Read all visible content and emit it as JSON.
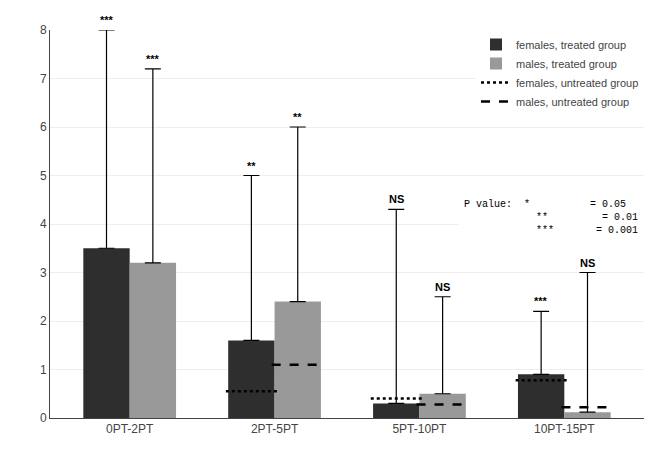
{
  "chart_data": {
    "type": "bar",
    "categories": [
      "0PT-2PT",
      "2PT-5PT",
      "5PT-10PT",
      "10PT-15PT"
    ],
    "series": [
      {
        "name": "females, treated group",
        "type": "bar",
        "color": "#2e2e2e",
        "values": [
          3.5,
          1.6,
          0.3,
          0.9
        ],
        "error_top": [
          8.0,
          5.0,
          4.3,
          2.2
        ],
        "significance": [
          "***",
          "**",
          "NS",
          "***"
        ]
      },
      {
        "name": "males, treated group",
        "type": "bar",
        "color": "#999999",
        "values": [
          3.2,
          2.4,
          0.5,
          0.12
        ],
        "error_top": [
          7.2,
          6.0,
          2.5,
          3.0
        ],
        "significance": [
          "***",
          "**",
          "NS",
          "NS"
        ]
      },
      {
        "name": "females, untreated group",
        "type": "line",
        "line_style": "dotted",
        "color": "black",
        "values": [
          null,
          0.55,
          0.4,
          0.78
        ]
      },
      {
        "name": "males, untreated group",
        "type": "line",
        "line_style": "dashed",
        "color": "black",
        "values": [
          null,
          1.1,
          0.28,
          0.22
        ]
      }
    ],
    "ylim": [
      0,
      8
    ],
    "yticks": [
      0,
      1,
      2,
      3,
      4,
      5,
      6,
      7,
      8
    ],
    "grid": true,
    "legend": "upper right",
    "annotations": [
      "P value:  *          = 0.05\n            **         = 0.01\n            ***       = 0.001"
    ]
  }
}
